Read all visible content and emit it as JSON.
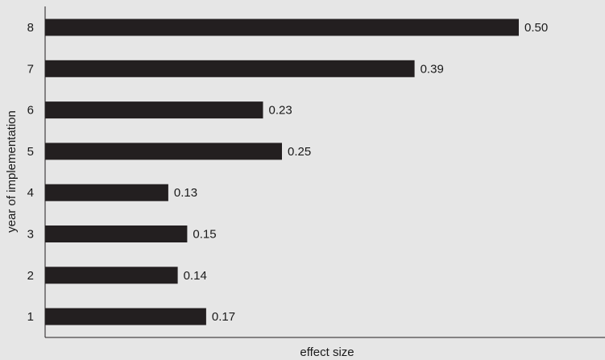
{
  "chart_data": {
    "type": "bar",
    "orientation": "horizontal",
    "categories": [
      "8",
      "7",
      "6",
      "5",
      "4",
      "3",
      "2",
      "1"
    ],
    "values": [
      0.5,
      0.39,
      0.23,
      0.25,
      0.13,
      0.15,
      0.14,
      0.17
    ],
    "value_labels": [
      "0.50",
      "0.39",
      "0.23",
      "0.25",
      "0.13",
      "0.15",
      "0.14",
      "0.17"
    ],
    "title": "",
    "xlabel": "effect size",
    "ylabel": "year of implementation",
    "xlim": [
      0,
      0.58
    ],
    "grid": false,
    "colors": {
      "bar": "#231f20",
      "axis": "#231f20",
      "background": "#e6e6e6"
    }
  }
}
